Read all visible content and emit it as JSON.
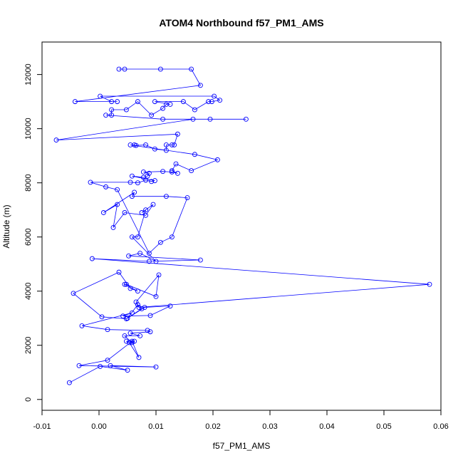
{
  "chart_data": {
    "type": "line",
    "title": "ATOM4 Northbound f57_PM1_AMS",
    "xlabel": "f57_PM1_AMS",
    "ylabel": "Altitude (m)",
    "xlim": [
      -0.01,
      0.06
    ],
    "ylim": [
      -400,
      13200
    ],
    "xticks": [
      -0.01,
      0,
      0.01,
      0.02,
      0.03,
      0.04,
      0.05,
      0.06
    ],
    "xtick_labels": [
      "-0.01",
      "0.00",
      "0.01",
      "0.02",
      "0.03",
      "0.04",
      "0.05",
      "0.06"
    ],
    "yticks": [
      0,
      2000,
      4000,
      6000,
      8000,
      10000,
      12000
    ],
    "ytick_labels": [
      "0",
      "2000",
      "4000",
      "6000",
      "8000",
      "10000",
      "12000"
    ],
    "grid": false,
    "series": [
      {
        "color": "#0000ff",
        "marker": "open-circle",
        "points": [
          [
            -0.0052,
            620
          ],
          [
            0.0002,
            1220
          ],
          [
            0.005,
            1080
          ],
          [
            0.002,
            1250
          ],
          [
            0.01,
            1200
          ],
          [
            -0.0035,
            1250
          ],
          [
            0.0015,
            1450
          ],
          [
            0.0058,
            2150
          ],
          [
            0.007,
            1550
          ],
          [
            0.0053,
            2100
          ],
          [
            0.0048,
            2150
          ],
          [
            0.0062,
            2150
          ],
          [
            0.0058,
            2100
          ],
          [
            0.0045,
            2350
          ],
          [
            0.0072,
            2350
          ],
          [
            0.0055,
            2450
          ],
          [
            0.009,
            2500
          ],
          [
            0.0085,
            2550
          ],
          [
            0.0015,
            2580
          ],
          [
            -0.003,
            2720
          ],
          [
            0.0058,
            3200
          ],
          [
            0.0042,
            3080
          ],
          [
            0.009,
            3100
          ],
          [
            0.0125,
            3450
          ],
          [
            0.008,
            3400
          ],
          [
            0.005,
            3000
          ],
          [
            0.0068,
            3500
          ],
          [
            0.0075,
            3350
          ],
          [
            0.0048,
            2980
          ],
          [
            0.0005,
            3050
          ],
          [
            -0.0045,
            3920
          ],
          [
            0.0035,
            4700
          ],
          [
            0.0055,
            4100
          ],
          [
            0.0068,
            4000
          ],
          [
            0.0045,
            4250
          ],
          [
            0.0048,
            4250
          ],
          [
            0.01,
            3800
          ],
          [
            0.0105,
            4600
          ],
          [
            0.0065,
            3600
          ],
          [
            0.007,
            3400
          ],
          [
            0.058,
            4250
          ],
          [
            -0.0012,
            5200
          ],
          [
            0.0088,
            5100
          ],
          [
            0.0178,
            5150
          ],
          [
            0.0052,
            5300
          ],
          [
            0.0072,
            5400
          ],
          [
            0.01,
            5100
          ],
          [
            0.0058,
            6000
          ],
          [
            0.0068,
            6000
          ],
          [
            0.0082,
            7000
          ],
          [
            0.0075,
            6900
          ],
          [
            0.0095,
            7200
          ],
          [
            0.0082,
            6800
          ],
          [
            0.0045,
            6900
          ],
          [
            0.0025,
            6350
          ],
          [
            0.0032,
            7200
          ],
          [
            0.0008,
            6900
          ],
          [
            0.0062,
            7650
          ],
          [
            0.0058,
            7500
          ],
          [
            0.0118,
            7500
          ],
          [
            0.0155,
            7450
          ],
          [
            0.0128,
            6000
          ],
          [
            0.0108,
            5800
          ],
          [
            0.0088,
            5400
          ],
          [
            0.0032,
            7750
          ],
          [
            0.0012,
            7850
          ],
          [
            -0.0015,
            8020
          ],
          [
            0.0055,
            8020
          ],
          [
            0.0068,
            8000
          ],
          [
            0.0082,
            8100
          ],
          [
            0.0092,
            8050
          ],
          [
            0.0098,
            8080
          ],
          [
            0.0058,
            8250
          ],
          [
            0.0078,
            8200
          ],
          [
            0.0085,
            8250
          ],
          [
            0.0088,
            8350
          ],
          [
            0.0078,
            8400
          ],
          [
            0.0112,
            8420
          ],
          [
            0.0128,
            8400
          ],
          [
            0.0138,
            8350
          ],
          [
            0.0128,
            8450
          ],
          [
            0.0135,
            8700
          ],
          [
            0.0162,
            8450
          ],
          [
            0.0208,
            8850
          ],
          [
            0.0168,
            9050
          ],
          [
            0.0055,
            9400
          ],
          [
            0.0062,
            9400
          ],
          [
            0.0065,
            9380
          ],
          [
            0.0082,
            9400
          ],
          [
            0.0098,
            9250
          ],
          [
            0.0118,
            9200
          ],
          [
            0.0118,
            9400
          ],
          [
            0.0128,
            9400
          ],
          [
            0.0132,
            9400
          ],
          [
            0.0138,
            9800
          ],
          [
            -0.0075,
            9580
          ],
          [
            0.0165,
            10350
          ],
          [
            0.0195,
            10350
          ],
          [
            0.0258,
            10350
          ],
          [
            0.0112,
            10350
          ],
          [
            0.0012,
            10500
          ],
          [
            0.0022,
            10500
          ],
          [
            0.0022,
            10700
          ],
          [
            0.0048,
            10700
          ],
          [
            0.0068,
            11000
          ],
          [
            0.0092,
            10500
          ],
          [
            0.0112,
            10750
          ],
          [
            0.0118,
            10900
          ],
          [
            0.0125,
            10900
          ],
          [
            0.0098,
            11000
          ],
          [
            0.0148,
            11000
          ],
          [
            0.0168,
            10700
          ],
          [
            0.0192,
            11000
          ],
          [
            0.0198,
            11000
          ],
          [
            0.0212,
            11050
          ],
          [
            0.0202,
            11200
          ],
          [
            0.0002,
            11200
          ],
          [
            0.0022,
            11000
          ],
          [
            0.0032,
            11000
          ],
          [
            -0.0042,
            11000
          ],
          [
            0.0178,
            11600
          ],
          [
            0.0162,
            12200
          ],
          [
            0.0108,
            12200
          ],
          [
            0.0045,
            12200
          ],
          [
            0.0035,
            12200
          ]
        ]
      }
    ]
  }
}
